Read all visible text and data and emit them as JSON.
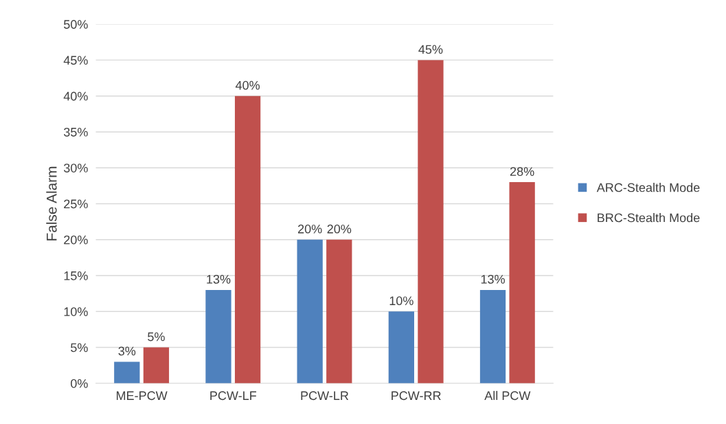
{
  "chart_data": {
    "type": "bar",
    "ylabel": "False Alarm",
    "categories": [
      "ME-PCW",
      "PCW-LF",
      "PCW-LR",
      "PCW-RR",
      "All PCW"
    ],
    "series": [
      {
        "name": "ARC-Stealth Mode",
        "color": "#4f81bd",
        "values": [
          3,
          13,
          20,
          10,
          13
        ],
        "value_labels": [
          "3%",
          "13%",
          "20%",
          "10%",
          "13%"
        ]
      },
      {
        "name": "BRC-Stealth Mode",
        "color": "#c0504d",
        "values": [
          5,
          40,
          20,
          45,
          28
        ],
        "value_labels": [
          "5%",
          "40%",
          "20%",
          "45%",
          "28%"
        ]
      }
    ],
    "ylim": [
      0,
      50
    ],
    "yticks": [
      {
        "value": 0,
        "label": "0%"
      },
      {
        "value": 5,
        "label": "5%"
      },
      {
        "value": 10,
        "label": "10%"
      },
      {
        "value": 15,
        "label": "15%"
      },
      {
        "value": 20,
        "label": "20%"
      },
      {
        "value": 25,
        "label": "25%"
      },
      {
        "value": 30,
        "label": "30%"
      },
      {
        "value": 35,
        "label": "35%"
      },
      {
        "value": 40,
        "label": "40%"
      },
      {
        "value": 45,
        "label": "45%"
      },
      {
        "value": 50,
        "label": "50%"
      }
    ],
    "grid": "y",
    "legend": "right"
  }
}
